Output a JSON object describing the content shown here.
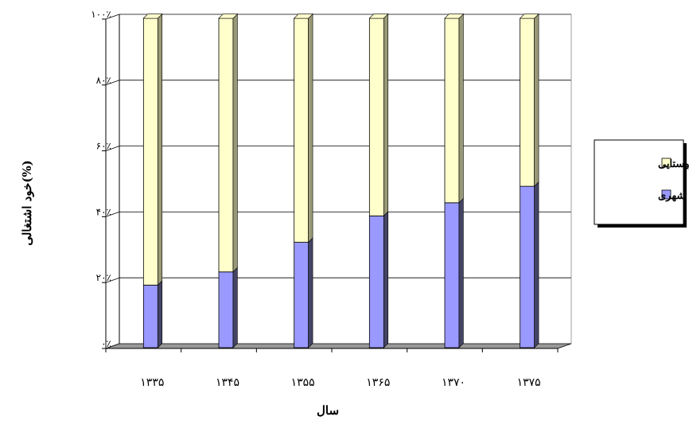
{
  "chart_data": {
    "type": "bar",
    "stacked": true,
    "percent": true,
    "three_d": true,
    "categories": [
      "۱۳۳۵",
      "۱۳۴۵",
      "۱۳۵۵",
      "۱۳۶۵",
      "۱۳۷۰",
      "۱۳۷۵"
    ],
    "series": [
      {
        "name": "نقاط شهری",
        "values": [
          19,
          23,
          32,
          40,
          44,
          49
        ],
        "color": "#9999ff"
      },
      {
        "name": "نقاط روستایی",
        "values": [
          81,
          77,
          68,
          60,
          56,
          51
        ],
        "color": "#ffffcc"
      }
    ],
    "y_ticks": [
      "۰٪",
      "۲۰٪",
      "۴۰٪",
      "۶۰٪",
      "۸۰٪",
      "۱۰۰٪"
    ],
    "ylim": [
      0,
      100
    ],
    "xlabel": "سال",
    "ylabel": "خود اشتغالی(%)",
    "grid": true,
    "legend_position": "right",
    "colors": {
      "floor": "#999999",
      "side_dark": "#444466",
      "side_light": "#999977"
    }
  }
}
